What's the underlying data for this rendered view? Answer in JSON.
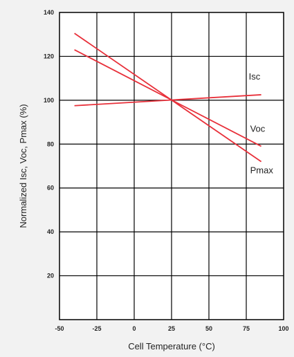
{
  "chart_data": {
    "type": "line",
    "title": "",
    "xlabel": "Cell Temperature (°C)",
    "ylabel": "Normalized Isc, Voc, Pmax (%)",
    "xlim": [
      -50,
      100
    ],
    "ylim": [
      0,
      140
    ],
    "x_ticks": [
      "-50",
      "-25",
      "0",
      "25",
      "50",
      "75",
      "100"
    ],
    "y_ticks": [
      "20",
      "40",
      "60",
      "80",
      "100",
      "120",
      "140"
    ],
    "grid": true,
    "legend": "labels at line ends",
    "series": [
      {
        "name": "Isc",
        "color": "#e8303a",
        "x": [
          -40,
          85
        ],
        "y": [
          97.5,
          102.5
        ]
      },
      {
        "name": "Voc",
        "color": "#e8303a",
        "x": [
          -40,
          85
        ],
        "y": [
          123,
          79
        ]
      },
      {
        "name": "Pmax",
        "color": "#e8303a",
        "x": [
          -40,
          85
        ],
        "y": [
          130.5,
          72
        ]
      }
    ]
  }
}
